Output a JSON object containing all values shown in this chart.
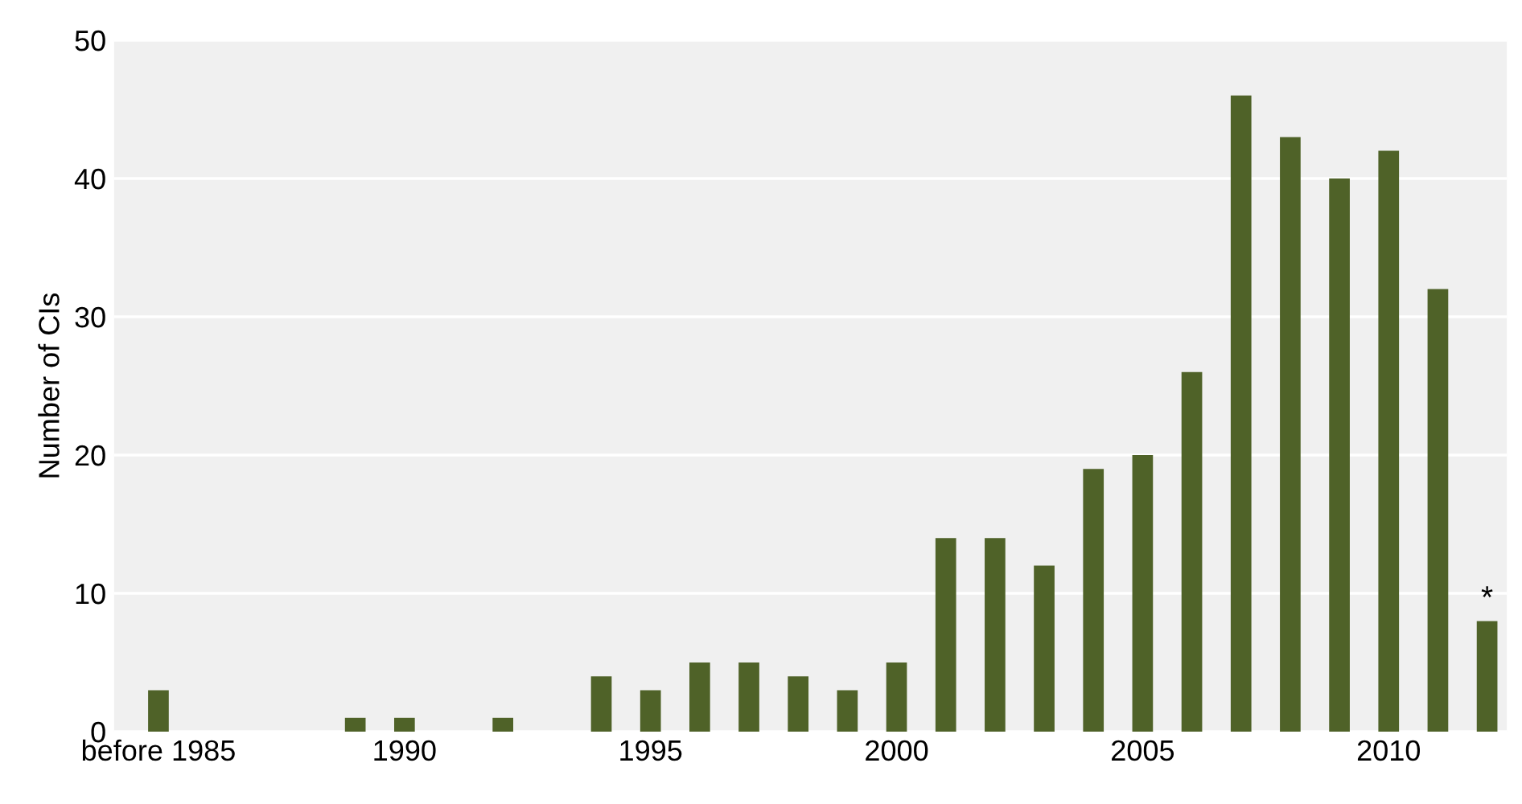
{
  "chart_data": {
    "type": "bar",
    "ylabel": "Number of CIs",
    "categories": [
      "before 1985",
      null,
      null,
      null,
      null,
      "1990",
      null,
      null,
      null,
      null,
      "1995",
      null,
      null,
      null,
      null,
      "2000",
      null,
      null,
      null,
      null,
      "2005",
      null,
      null,
      null,
      null,
      "2010",
      null,
      null
    ],
    "values": [
      3,
      0,
      0,
      0,
      1,
      1,
      0,
      1,
      0,
      4,
      3,
      5,
      5,
      4,
      3,
      5,
      14,
      14,
      12,
      19,
      20,
      26,
      46,
      43,
      40,
      42,
      32,
      8
    ],
    "color": "#4f6228",
    "ylim": [
      0,
      50
    ],
    "yticks": [
      0,
      10,
      20,
      30,
      40,
      50
    ],
    "grid": "y",
    "annotations": [
      {
        "text": "*",
        "y": 8
      }
    ]
  }
}
